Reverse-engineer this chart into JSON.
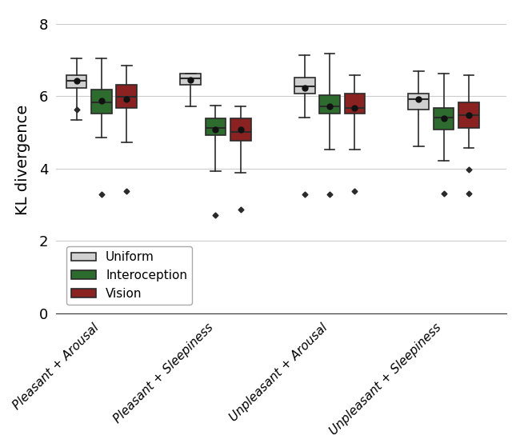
{
  "title": "",
  "ylabel": "KL divergence",
  "ylim": [
    0,
    8.5
  ],
  "yticks": [
    0,
    2,
    4,
    6,
    8
  ],
  "categories": [
    "Pleasant + Arousal",
    "Pleasant + Sleepiness",
    "Unpleasant + Arousal",
    "Unpleasant + Sleepiness"
  ],
  "colors": {
    "Uniform": "#d0d0d0",
    "Interoception": "#2e6b2e",
    "Vision": "#8b2222"
  },
  "legend_labels": [
    "Uniform",
    "Interoception",
    "Vision"
  ],
  "boxplot_data": {
    "Pleasant + Arousal": {
      "Uniform": {
        "whislo": 5.35,
        "q1": 6.22,
        "med": 6.42,
        "q3": 6.58,
        "whishi": 7.05,
        "mean": 6.42,
        "fliers": [
          5.62
        ]
      },
      "Interoception": {
        "whislo": 4.85,
        "q1": 5.52,
        "med": 5.82,
        "q3": 6.18,
        "whishi": 7.05,
        "mean": 5.88,
        "fliers": [
          3.28
        ]
      },
      "Vision": {
        "whislo": 4.72,
        "q1": 5.68,
        "med": 5.98,
        "q3": 6.32,
        "whishi": 6.85,
        "mean": 5.92,
        "fliers": [
          3.38
        ]
      }
    },
    "Pleasant + Sleepiness": {
      "Uniform": {
        "whislo": 5.72,
        "q1": 6.32,
        "med": 6.48,
        "q3": 6.62,
        "whishi": 6.62,
        "mean": 6.45,
        "fliers": []
      },
      "Interoception": {
        "whislo": 3.92,
        "q1": 4.92,
        "med": 5.12,
        "q3": 5.38,
        "whishi": 5.75,
        "mean": 5.08,
        "fliers": [
          2.72
        ]
      },
      "Vision": {
        "whislo": 3.88,
        "q1": 4.78,
        "med": 5.02,
        "q3": 5.38,
        "whishi": 5.72,
        "mean": 5.08,
        "fliers": [
          2.88
        ]
      }
    },
    "Unpleasant + Arousal": {
      "Uniform": {
        "whislo": 5.42,
        "q1": 6.08,
        "med": 6.28,
        "q3": 6.52,
        "whishi": 7.12,
        "mean": 6.22,
        "fliers": [
          3.28
        ]
      },
      "Interoception": {
        "whislo": 4.52,
        "q1": 5.52,
        "med": 5.72,
        "q3": 6.02,
        "whishi": 7.18,
        "mean": 5.72,
        "fliers": [
          3.28
        ]
      },
      "Vision": {
        "whislo": 4.52,
        "q1": 5.52,
        "med": 5.68,
        "q3": 6.08,
        "whishi": 6.58,
        "mean": 5.68,
        "fliers": [
          3.38
        ]
      }
    },
    "Unpleasant + Sleepiness": {
      "Uniform": {
        "whislo": 4.62,
        "q1": 5.62,
        "med": 5.92,
        "q3": 6.08,
        "whishi": 6.68,
        "mean": 5.92,
        "fliers": []
      },
      "Interoception": {
        "whislo": 4.22,
        "q1": 5.08,
        "med": 5.42,
        "q3": 5.68,
        "whishi": 6.62,
        "mean": 5.38,
        "fliers": [
          3.32
        ]
      },
      "Vision": {
        "whislo": 4.58,
        "q1": 5.12,
        "med": 5.48,
        "q3": 5.82,
        "whishi": 6.58,
        "mean": 5.48,
        "fliers": [
          3.98,
          3.32
        ]
      }
    }
  },
  "background_color": "#ffffff",
  "grid_color": "#cccccc",
  "box_width": 0.18,
  "offsets": [
    -0.22,
    0.0,
    0.22
  ],
  "group_positions": [
    1,
    2,
    3,
    4
  ],
  "figsize": [
    6.4,
    5.54
  ],
  "dpi": 100
}
